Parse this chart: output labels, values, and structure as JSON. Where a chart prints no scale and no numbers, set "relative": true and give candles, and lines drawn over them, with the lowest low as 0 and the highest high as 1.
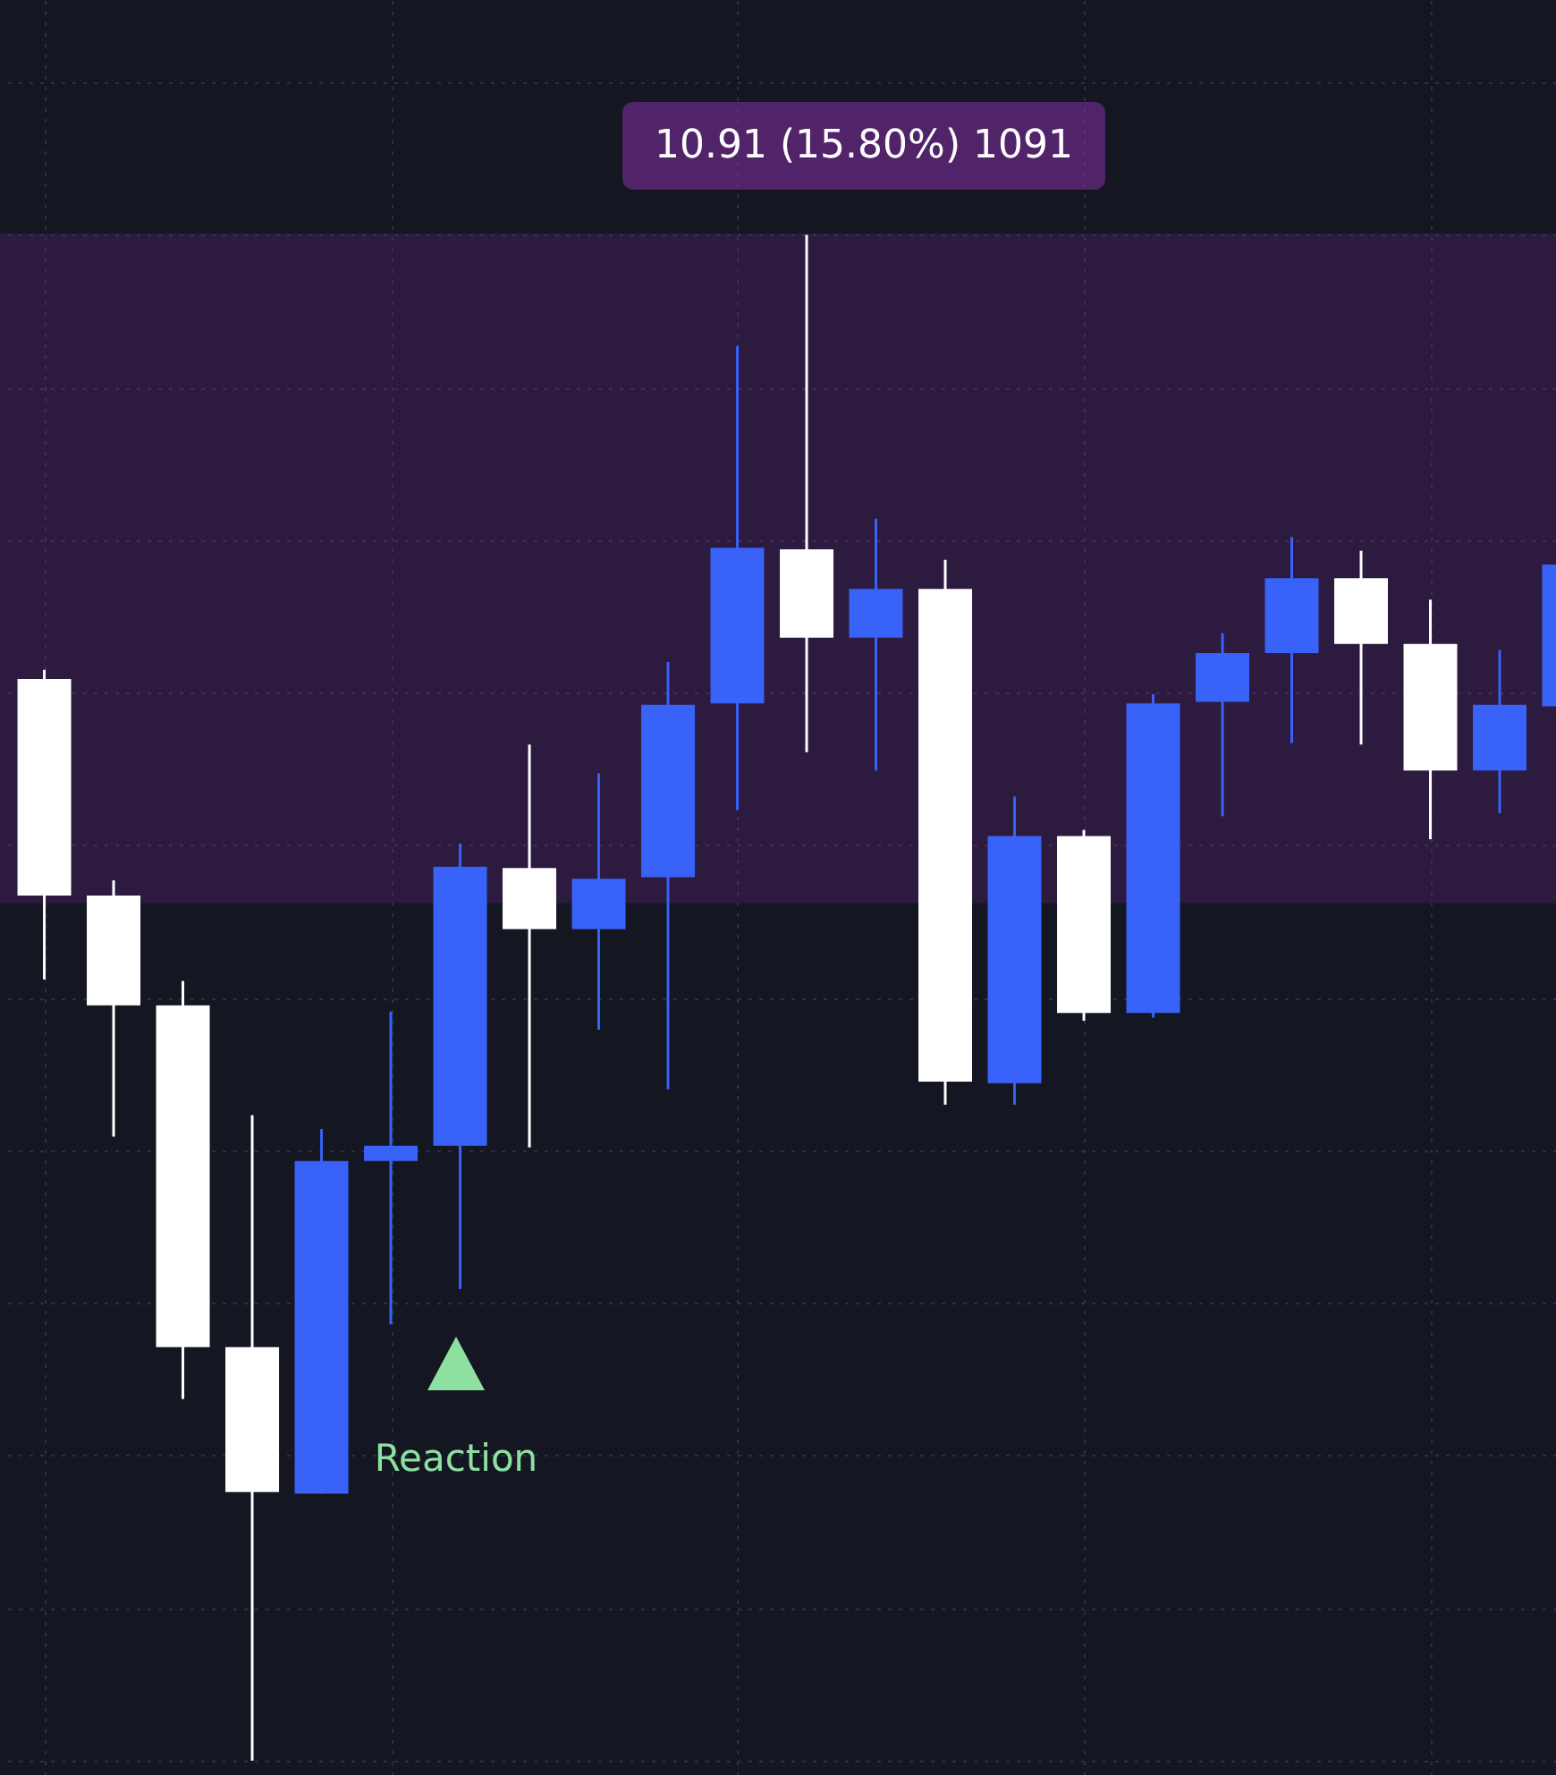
{
  "chart_data": {
    "type": "candlestick",
    "relative": true,
    "categories": [
      null,
      null,
      null,
      null,
      null,
      null,
      null,
      null,
      null,
      null,
      null,
      null,
      null,
      null,
      null,
      null,
      null,
      null,
      null,
      null,
      null,
      null,
      null
    ],
    "ohlc": [
      [
        0.709,
        0.715,
        0.512,
        0.567
      ],
      [
        0.567,
        0.577,
        0.409,
        0.495
      ],
      [
        0.495,
        0.511,
        0.237,
        0.271
      ],
      [
        0.271,
        0.423,
        0,
        0.176
      ],
      [
        0.175,
        0.414,
        0.175,
        0.393
      ],
      [
        0.393,
        0.491,
        0.286,
        0.403
      ],
      [
        0.403,
        0.601,
        0.309,
        0.586
      ],
      [
        0.585,
        0.666,
        0.402,
        0.545
      ],
      [
        0.545,
        0.647,
        0.479,
        0.578
      ],
      [
        0.579,
        0.72,
        0.44,
        0.692
      ],
      [
        0.693,
        0.927,
        0.623,
        0.795
      ],
      [
        0.794,
        1,
        0.661,
        0.736
      ],
      [
        0.736,
        0.814,
        0.649,
        0.768
      ],
      [
        0.768,
        0.787,
        0.43,
        0.445
      ],
      [
        0.444,
        0.632,
        0.43,
        0.606
      ],
      [
        0.606,
        0.61,
        0.485,
        0.49
      ],
      [
        0.49,
        0.699,
        0.487,
        0.693
      ],
      [
        0.694,
        0.739,
        0.619,
        0.726
      ],
      [
        0.726,
        0.802,
        0.667,
        0.775
      ],
      [
        0.775,
        0.793,
        0.666,
        0.732
      ],
      [
        0.732,
        0.761,
        0.604,
        0.649
      ],
      [
        0.649,
        0.728,
        0.621,
        0.692
      ],
      [
        0.691,
        0.784,
        0.691,
        0.784
      ]
    ],
    "colors": [
      "#ffffff",
      "#ffffff",
      "#ffffff",
      "#ffffff",
      "#3862f8",
      "#3862f8",
      "#3862f8",
      "#ffffff",
      "#3862f8",
      "#3862f8",
      "#3862f8",
      "#ffffff",
      "#3862f8",
      "#ffffff",
      "#3862f8",
      "#ffffff",
      "#3862f8",
      "#3862f8",
      "#3862f8",
      "#ffffff",
      "#ffffff",
      "#3862f8",
      "#3862f8"
    ],
    "bands": [
      {
        "axis": "y",
        "from": 0.563,
        "to": 1,
        "label": "10.91 (15.80%) 1091",
        "color": "#8e2fb0"
      }
    ],
    "annotations": [
      "Reaction"
    ],
    "grid": true
  }
}
